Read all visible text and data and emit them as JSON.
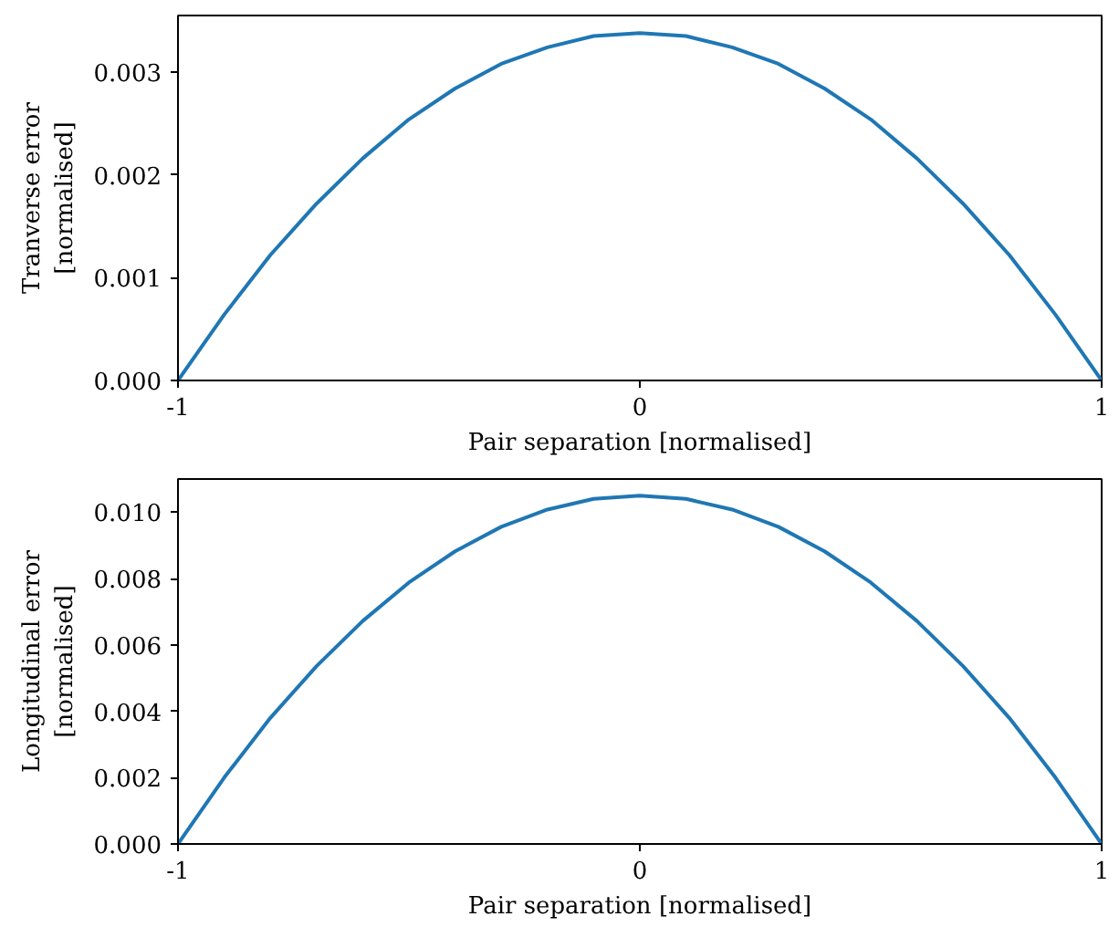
{
  "chart_data": [
    {
      "type": "line",
      "xlabel": "Pair separation [normalised]",
      "ylabel": "Tranverse error\n[normalised]",
      "x": [
        -1,
        -0.9,
        -0.8,
        -0.7,
        -0.6,
        -0.5,
        -0.4,
        -0.3,
        -0.2,
        -0.1,
        0,
        0.1,
        0.2,
        0.3,
        0.4,
        0.5,
        0.6,
        0.7,
        0.8,
        0.9,
        1
      ],
      "series": [
        {
          "color": "#1f77b4",
          "values": [
            0,
            0.00064,
            0.00122,
            0.00172,
            0.00216,
            0.00254,
            0.00284,
            0.00308,
            0.00324,
            0.00335,
            0.00338,
            0.00335,
            0.00324,
            0.00308,
            0.00284,
            0.00254,
            0.00216,
            0.00172,
            0.00122,
            0.00064,
            0
          ]
        }
      ],
      "xlim": [
        -1,
        1
      ],
      "xticks": [
        -1,
        0,
        1
      ],
      "ylim": [
        0,
        0.00355
      ],
      "yticks": [
        {
          "value": 0,
          "label": "0.000"
        },
        {
          "value": 0.001,
          "label": "0.001"
        },
        {
          "value": 0.002,
          "label": "0.002"
        },
        {
          "value": 0.003,
          "label": "0.003"
        }
      ],
      "grid": false
    },
    {
      "type": "line",
      "xlabel": "Pair separation [normalised]",
      "ylabel": "Longitudinal error\n[normalised]",
      "x": [
        -1,
        -0.9,
        -0.8,
        -0.7,
        -0.6,
        -0.5,
        -0.4,
        -0.3,
        -0.2,
        -0.1,
        0,
        0.1,
        0.2,
        0.3,
        0.4,
        0.5,
        0.6,
        0.7,
        0.8,
        0.9,
        1
      ],
      "series": [
        {
          "color": "#1f77b4",
          "values": [
            0,
            0.002,
            0.0038,
            0.00536,
            0.00672,
            0.00788,
            0.00882,
            0.00956,
            0.01008,
            0.0104,
            0.0105,
            0.0104,
            0.01008,
            0.00956,
            0.00882,
            0.00788,
            0.00672,
            0.00536,
            0.0038,
            0.002,
            0
          ]
        }
      ],
      "xlim": [
        -1,
        1
      ],
      "xticks": [
        -1,
        0,
        1
      ],
      "ylim": [
        0,
        0.011
      ],
      "yticks": [
        {
          "value": 0,
          "label": "0.000"
        },
        {
          "value": 0.002,
          "label": "0.002"
        },
        {
          "value": 0.004,
          "label": "0.004"
        },
        {
          "value": 0.006,
          "label": "0.006"
        },
        {
          "value": 0.008,
          "label": "0.008"
        },
        {
          "value": 0.01,
          "label": "0.010"
        }
      ],
      "grid": false
    }
  ]
}
